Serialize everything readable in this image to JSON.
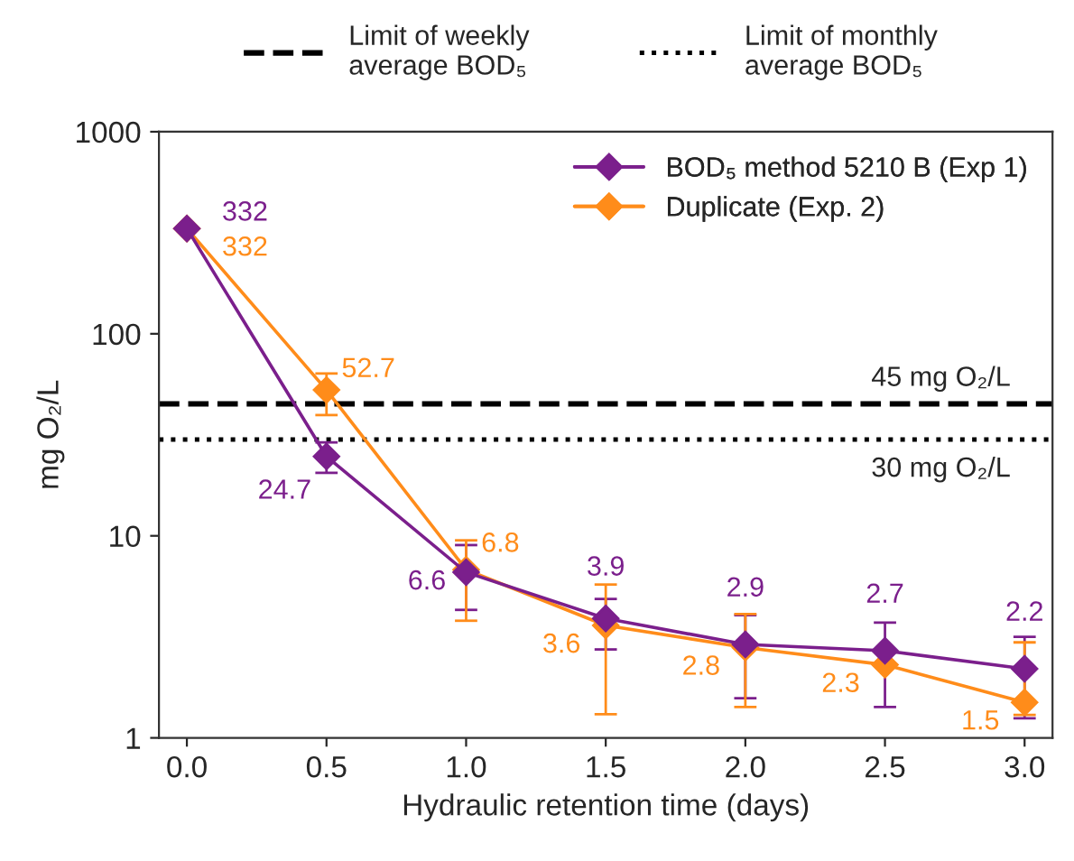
{
  "chart_data": {
    "type": "line",
    "xlabel": "Hydraulic retention time (days)",
    "ylabel": "mg O₂/L",
    "x": [
      0,
      0.5,
      1.0,
      1.5,
      2.0,
      2.5,
      3.0
    ],
    "series": [
      {
        "name": "BOD₅ method 5210 B (Exp 1)",
        "color": "#7b1f8c",
        "values": [
          332,
          24.7,
          6.6,
          3.9,
          2.9,
          2.7,
          2.2
        ],
        "value_labels": [
          "332",
          "24.7",
          "6.6",
          "3.9",
          "2.9",
          "2.7",
          "2.2"
        ],
        "errors": [
          null,
          [
            20.5,
            29
          ],
          [
            4.3,
            9
          ],
          [
            2.74,
            4.87
          ],
          [
            1.57,
            4.05
          ],
          [
            1.42,
            3.72
          ],
          [
            1.25,
            3.16
          ]
        ]
      },
      {
        "name": "Duplicate (Exp. 2)",
        "color": "#ff8c1a",
        "values": [
          332,
          52.7,
          6.8,
          3.6,
          2.8,
          2.3,
          1.5
        ],
        "value_labels": [
          "332",
          "52.7",
          "6.8",
          "3.6",
          "2.8",
          "2.3",
          "1.5"
        ],
        "errors": [
          null,
          [
            39.6,
            63.6
          ],
          [
            3.8,
            9.5
          ],
          [
            1.31,
            5.74
          ],
          [
            1.42,
            4.1
          ],
          null,
          [
            1.3,
            2.97
          ]
        ]
      }
    ],
    "marker": "diamond",
    "line_style": "solid",
    "log": "y",
    "xlim": [
      -0.1,
      3.1
    ],
    "xticks": [
      {
        "value": 0,
        "label": "0.0"
      },
      {
        "value": 0.5,
        "label": "0.5"
      },
      {
        "value": 1.0,
        "label": "1.0"
      },
      {
        "value": 1.5,
        "label": "1.5"
      },
      {
        "value": 2.0,
        "label": "2.0"
      },
      {
        "value": 2.5,
        "label": "2.5"
      },
      {
        "value": 3.0,
        "label": "3.0"
      }
    ],
    "ylim": [
      1,
      1000
    ],
    "yticks": [
      1,
      10,
      100,
      1000
    ],
    "ref_lines": [
      {
        "axis": "y",
        "value": 45,
        "label": "Limit of weekly\naverage BOD₅",
        "color": "#000000",
        "line_style": "dashed"
      },
      {
        "axis": "y",
        "value": 30,
        "label": "Limit of monthly\naverage BOD₅",
        "color": "#000000",
        "line_style": "dotted"
      }
    ],
    "annotations": [
      {
        "text": "45 mg O₂/L",
        "x": 2.95,
        "y": 45
      },
      {
        "text": "30 mg O₂/L",
        "x": 2.95,
        "y": 30
      }
    ],
    "grid": false,
    "legend": "top right"
  }
}
